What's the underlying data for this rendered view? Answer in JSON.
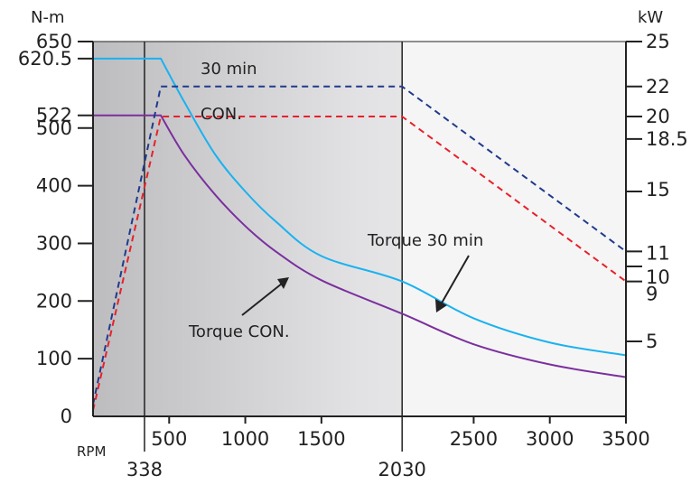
{
  "chart_data": {
    "type": "line",
    "left_axis_unit": "N-m",
    "right_axis_unit": "kW",
    "x_axis_unit": "RPM",
    "xlim": [
      0,
      3500
    ],
    "ylim_left": [
      0,
      650
    ],
    "ylim_right": [
      0,
      25
    ],
    "x_ticks": [
      {
        "label": "500",
        "value": 500
      },
      {
        "label": "1000",
        "value": 1000
      },
      {
        "label": "1500",
        "value": 1500
      },
      {
        "label": "2500",
        "value": 2500
      },
      {
        "label": "3000",
        "value": 3000
      },
      {
        "label": "3500",
        "value": 3500
      }
    ],
    "x_markers": [
      {
        "label": "338",
        "value": 338
      },
      {
        "label": "2030",
        "value": 2030
      }
    ],
    "left_ticks": [
      {
        "label": "0",
        "value": 0
      },
      {
        "label": "100",
        "value": 100
      },
      {
        "label": "200",
        "value": 200
      },
      {
        "label": "300",
        "value": 300
      },
      {
        "label": "400",
        "value": 400
      },
      {
        "label": "500",
        "value": 500
      },
      {
        "label": "522",
        "value": 522
      },
      {
        "label": "620.5",
        "value": 620.5
      },
      {
        "label": "650",
        "value": 650
      }
    ],
    "right_ticks": [
      {
        "label": "25",
        "value": 25
      },
      {
        "label": "22",
        "value": 22
      },
      {
        "label": "20",
        "value": 20
      },
      {
        "label": "18.5",
        "value": 18.5
      },
      {
        "label": "15",
        "value": 15
      },
      {
        "label": "11",
        "value": 11
      },
      {
        "label": "10",
        "value": 10
      },
      {
        "label": "9",
        "value": 9
      },
      {
        "label": "5",
        "value": 5
      }
    ],
    "series": [
      {
        "name": "Torque 30 min",
        "axis": "left",
        "color": "#1ab2f0",
        "style": "solid",
        "points": [
          [
            0,
            620.5
          ],
          [
            445,
            620.5
          ],
          [
            600,
            545
          ],
          [
            800,
            455
          ],
          [
            1000,
            390
          ],
          [
            1200,
            338
          ],
          [
            1500,
            278
          ],
          [
            2030,
            234
          ],
          [
            2500,
            170
          ],
          [
            3000,
            128
          ],
          [
            3500,
            106
          ]
        ]
      },
      {
        "name": "Torque CON.",
        "axis": "left",
        "color": "#7b2f9e",
        "style": "solid",
        "points": [
          [
            0,
            522
          ],
          [
            445,
            522
          ],
          [
            600,
            453
          ],
          [
            800,
            385
          ],
          [
            1000,
            330
          ],
          [
            1200,
            286
          ],
          [
            1500,
            236
          ],
          [
            2030,
            178
          ],
          [
            2500,
            125
          ],
          [
            3000,
            90
          ],
          [
            3500,
            68
          ]
        ]
      },
      {
        "name": "30 min",
        "axis": "right",
        "color": "#1f3a8c",
        "style": "dashed",
        "points": [
          [
            0,
            0.8
          ],
          [
            445,
            22
          ],
          [
            2030,
            22
          ],
          [
            3500,
            11
          ]
        ]
      },
      {
        "name": "CON.",
        "axis": "right",
        "color": "#e8202a",
        "style": "dashed",
        "points": [
          [
            0,
            0.4
          ],
          [
            445,
            20
          ],
          [
            2030,
            20
          ],
          [
            3500,
            9
          ]
        ]
      }
    ],
    "annotations": [
      {
        "text": "Torque 30 min",
        "arrow_to": [
          2270,
          228
        ]
      },
      {
        "text": "Torque CON.",
        "arrow_to": [
          1250,
          305
        ]
      },
      {
        "text": "30 min"
      },
      {
        "text": "CON."
      }
    ],
    "shading": {
      "dark": "#bdbdc0",
      "mid": "#e2e2e4",
      "light": "#f5f5f5"
    }
  }
}
